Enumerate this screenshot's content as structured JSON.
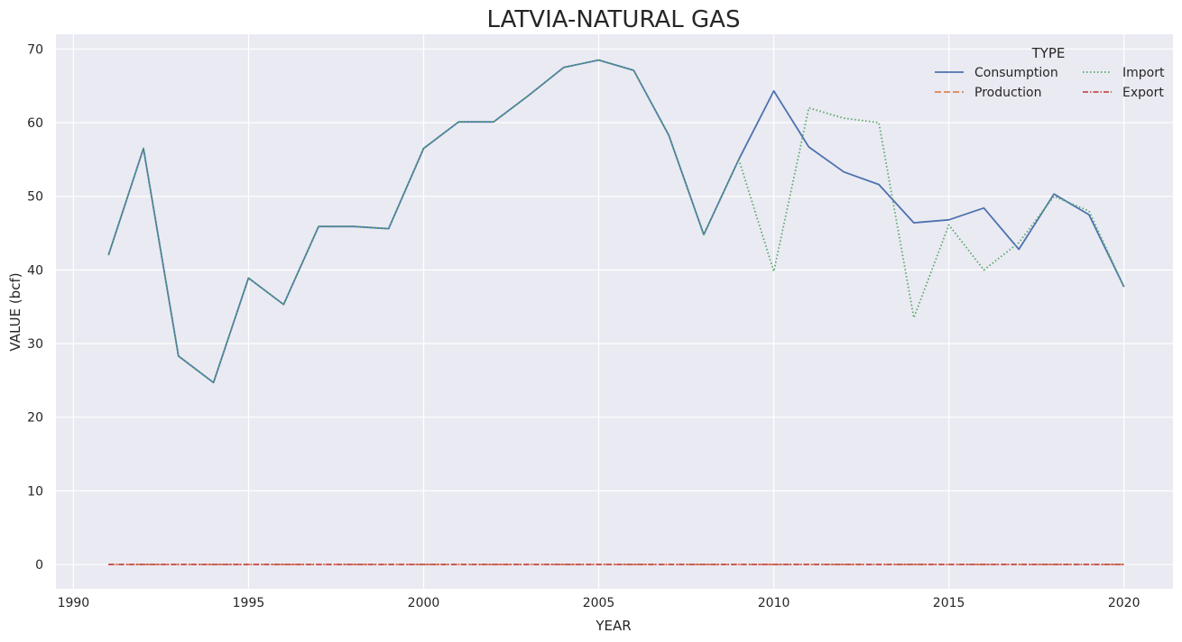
{
  "chart_data": {
    "type": "line",
    "title": "LATVIA-NATURAL GAS",
    "xlabel": "YEAR",
    "ylabel": "VALUE (bcf)",
    "xlim": [
      1989.5,
      2021.4
    ],
    "ylim": [
      -3.3,
      72
    ],
    "x_ticks": [
      1990,
      1995,
      2000,
      2005,
      2010,
      2015,
      2020
    ],
    "y_ticks": [
      0,
      10,
      20,
      30,
      40,
      50,
      60,
      70
    ],
    "grid": true,
    "legend": {
      "title": "TYPE",
      "placement": "top-right",
      "columns": 2
    },
    "x": [
      1991,
      1992,
      1993,
      1994,
      1995,
      1996,
      1997,
      1998,
      1999,
      2000,
      2001,
      2002,
      2003,
      2004,
      2005,
      2006,
      2007,
      2008,
      2009,
      2010,
      2011,
      2012,
      2013,
      2014,
      2015,
      2016,
      2017,
      2018,
      2019,
      2020
    ],
    "series": [
      {
        "name": "Consumption",
        "color": "#4c72b0",
        "dash": "solid",
        "values": [
          42.0,
          56.5,
          28.3,
          24.7,
          38.9,
          35.3,
          45.9,
          45.9,
          45.6,
          56.5,
          60.1,
          60.1,
          63.7,
          67.5,
          68.5,
          67.1,
          58.3,
          44.8,
          55.0,
          64.3,
          56.7,
          53.3,
          51.6,
          46.4,
          46.8,
          48.4,
          42.8,
          50.3,
          47.5,
          37.7
        ]
      },
      {
        "name": "Production",
        "color": "#dd8452",
        "dash": "dashed",
        "values": [
          0,
          0,
          0,
          0,
          0,
          0,
          0,
          0,
          0,
          0,
          0,
          0,
          0,
          0,
          0,
          0,
          0,
          0,
          0,
          0,
          0,
          0,
          0,
          0,
          0,
          0,
          0,
          0,
          0,
          0
        ]
      },
      {
        "name": "Import",
        "color": "#55a868",
        "dash": "dotted",
        "values": [
          42.0,
          56.5,
          28.3,
          24.7,
          38.9,
          35.3,
          45.9,
          45.9,
          45.6,
          56.5,
          60.1,
          60.1,
          63.7,
          67.5,
          68.5,
          67.1,
          58.3,
          44.8,
          55.0,
          39.8,
          62.0,
          60.6,
          60.0,
          33.5,
          46.1,
          40.0,
          43.7,
          50.0,
          48.0,
          37.7
        ]
      },
      {
        "name": "Export",
        "color": "#c44e52",
        "dash": "dashdot",
        "values": [
          0,
          0,
          0,
          0,
          0,
          0,
          0,
          0,
          0,
          0,
          0,
          0,
          0,
          0,
          0,
          0,
          0,
          0,
          0,
          0,
          0,
          0,
          0,
          0,
          0,
          0,
          0,
          0,
          0,
          0
        ]
      }
    ],
    "colors": {
      "plot_background": "#eaeaf2",
      "grid": "#ffffff",
      "text": "#262626"
    }
  }
}
